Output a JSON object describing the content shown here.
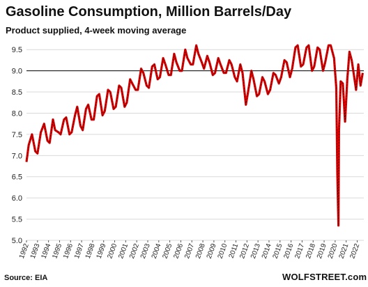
{
  "chart_data": {
    "type": "line",
    "title": "Gasoline Consumption, Million Barrels/Day",
    "subtitle": "Product supplied, 4-week moving average",
    "source": "Source: EIA",
    "brand": "WOLFSTREET.com",
    "ylim": [
      5.0,
      9.75
    ],
    "yticks": [
      "5.0",
      "5.5",
      "6.0",
      "6.5",
      "7.0",
      "7.5",
      "8.0",
      "8.5",
      "9.0",
      "9.5"
    ],
    "xlim": [
      1992.0,
      2022.6
    ],
    "xticks": [
      "1992",
      "1993",
      "1994",
      "1995",
      "1996",
      "1997",
      "1998",
      "1999",
      "2000",
      "2001",
      "2002",
      "2003",
      "2004",
      "2005",
      "2006",
      "2007",
      "2008",
      "2009",
      "2010",
      "2011",
      "2012",
      "2013",
      "2014",
      "2015",
      "2016",
      "2017",
      "2018",
      "2019",
      "2020",
      "2021",
      "2022"
    ],
    "reference_line": 9.0,
    "grid": "horizontal",
    "colors": {
      "line": "#e00000",
      "line_shadow": "#3a0000",
      "reference": "#000000",
      "grid": "#d9d9d9"
    },
    "series": [
      {
        "x": [
          1992.0,
          1992.2,
          1992.5,
          1992.8,
          1993.0,
          1993.3,
          1993.6,
          1993.9,
          1994.1,
          1994.4,
          1994.6,
          1994.9,
          1995.1,
          1995.4,
          1995.6,
          1995.9,
          1996.1,
          1996.4,
          1996.6,
          1996.9,
          1997.1,
          1997.4,
          1997.6,
          1997.9,
          1998.1,
          1998.4,
          1998.6,
          1998.9,
          1999.1,
          1999.4,
          1999.6,
          1999.9,
          2000.1,
          2000.4,
          2000.6,
          2000.9,
          2001.1,
          2001.4,
          2001.6,
          2001.9,
          2002.1,
          2002.4,
          2002.6,
          2002.9,
          2003.1,
          2003.4,
          2003.6,
          2003.9,
          2004.1,
          2004.4,
          2004.6,
          2004.9,
          2005.1,
          2005.4,
          2005.6,
          2005.9,
          2006.1,
          2006.4,
          2006.6,
          2006.9,
          2007.1,
          2007.4,
          2007.6,
          2007.9,
          2008.1,
          2008.4,
          2008.6,
          2008.9,
          2009.1,
          2009.4,
          2009.6,
          2009.9,
          2010.1,
          2010.4,
          2010.6,
          2010.9,
          2011.1,
          2011.4,
          2011.6,
          2011.9,
          2012.1,
          2012.4,
          2012.6,
          2012.9,
          2013.1,
          2013.4,
          2013.6,
          2013.9,
          2014.1,
          2014.4,
          2014.6,
          2014.9,
          2015.1,
          2015.4,
          2015.6,
          2015.9,
          2016.1,
          2016.4,
          2016.6,
          2016.9,
          2017.1,
          2017.4,
          2017.6,
          2017.9,
          2018.1,
          2018.4,
          2018.6,
          2018.9,
          2019.1,
          2019.4,
          2019.6,
          2019.9,
          2020.1,
          2020.2,
          2020.3,
          2020.35,
          2020.5,
          2020.7,
          2020.9,
          2021.1,
          2021.3,
          2021.5,
          2021.7,
          2021.9,
          2022.1,
          2022.3,
          2022.5
        ],
        "y": [
          6.85,
          7.25,
          7.5,
          7.1,
          7.05,
          7.55,
          7.75,
          7.35,
          7.3,
          7.85,
          7.6,
          7.55,
          7.5,
          7.85,
          7.9,
          7.5,
          7.55,
          7.95,
          8.15,
          7.7,
          7.6,
          8.1,
          8.2,
          7.85,
          7.85,
          8.4,
          8.45,
          7.95,
          8.05,
          8.55,
          8.5,
          8.1,
          8.15,
          8.65,
          8.6,
          8.15,
          8.25,
          8.8,
          8.7,
          8.55,
          8.55,
          9.05,
          8.95,
          8.65,
          8.6,
          9.1,
          9.15,
          8.8,
          8.85,
          9.3,
          9.15,
          8.9,
          8.9,
          9.4,
          9.2,
          9.0,
          9.0,
          9.5,
          9.3,
          9.15,
          9.15,
          9.6,
          9.4,
          9.2,
          9.05,
          9.35,
          9.2,
          8.9,
          8.95,
          9.3,
          9.15,
          8.95,
          8.95,
          9.25,
          9.15,
          8.85,
          8.75,
          9.15,
          8.95,
          8.2,
          8.5,
          9.0,
          8.8,
          8.4,
          8.45,
          8.85,
          8.75,
          8.45,
          8.55,
          8.95,
          8.9,
          8.7,
          8.85,
          9.25,
          9.2,
          8.85,
          9.05,
          9.55,
          9.6,
          9.1,
          9.15,
          9.55,
          9.6,
          9.0,
          9.1,
          9.55,
          9.5,
          9.0,
          9.2,
          9.6,
          9.6,
          9.3,
          8.6,
          6.6,
          5.35,
          7.6,
          8.75,
          8.7,
          7.8,
          8.8,
          9.45,
          9.25,
          8.9,
          8.55,
          9.15,
          8.65,
          8.95
        ]
      }
    ]
  }
}
